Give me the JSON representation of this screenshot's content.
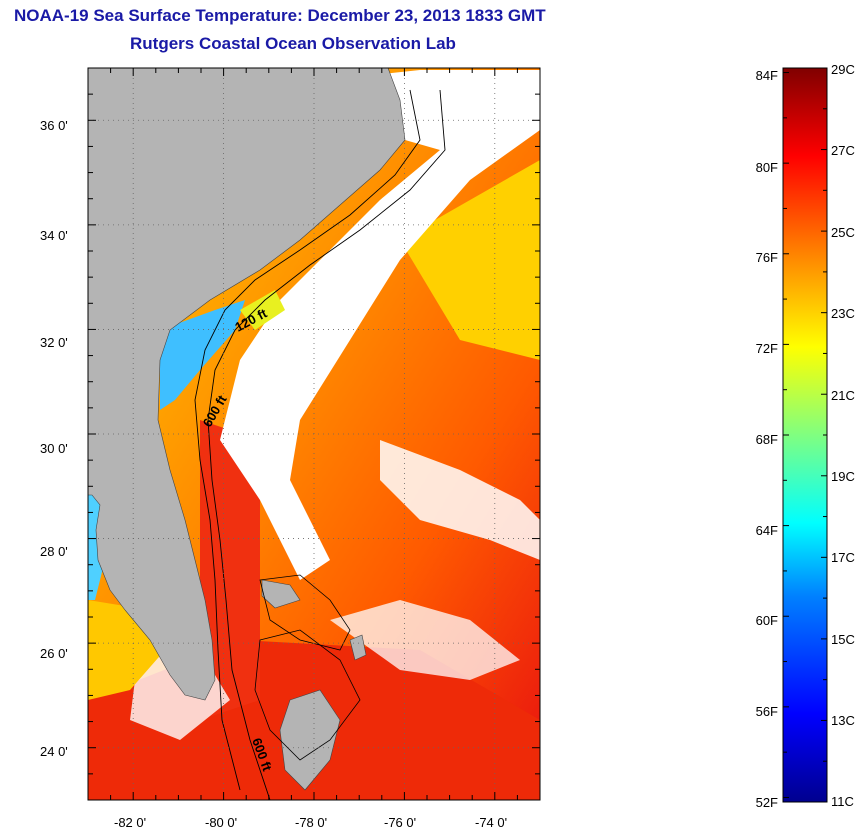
{
  "title": {
    "line1": "NOAA-19 Sea Surface Temperature:  December 23, 2013 1833 GMT",
    "line2": "Rutgers Coastal Ocean Observation Lab"
  },
  "map": {
    "lat_ticks": [
      "24 0'",
      "26 0'",
      "28 0'",
      "30 0'",
      "32 0'",
      "34 0'",
      "36 0'"
    ],
    "lon_ticks": [
      "-82 0'",
      "-80 0'",
      "-78 0'",
      "-76 0'",
      "-74 0'"
    ],
    "lat_range": [
      23,
      37
    ],
    "lon_range": [
      -83,
      -73
    ],
    "contour_labels": [
      "120 ft",
      "600 ft",
      "600 ft"
    ],
    "land_color": "#b4b4b4",
    "cloud_color": "#ffffff",
    "grid": true
  },
  "colorbar": {
    "fahrenheit_labels": [
      "84F",
      "80F",
      "76F",
      "72F",
      "68F",
      "64F",
      "60F",
      "56F",
      "52F"
    ],
    "celsius_labels": [
      "29C",
      "27C",
      "25C",
      "23C",
      "21C",
      "19C",
      "17C",
      "15C",
      "13C",
      "11C"
    ],
    "range_c": [
      11,
      29
    ],
    "colors": [
      "#00008f",
      "#0000ff",
      "#007fff",
      "#00ffff",
      "#7fff7f",
      "#ffff00",
      "#ff7f00",
      "#ff0000",
      "#7f0000"
    ]
  }
}
